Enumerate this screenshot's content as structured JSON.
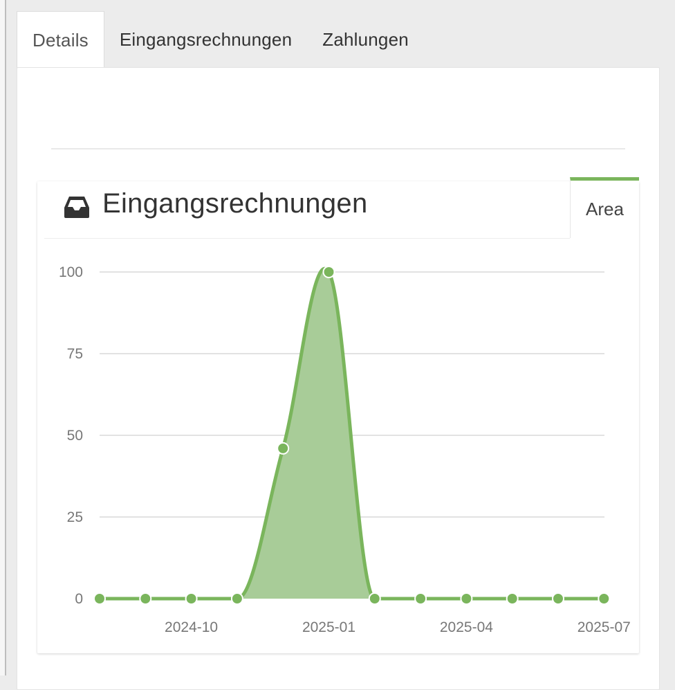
{
  "tabs": [
    {
      "label": "Details",
      "active": true
    },
    {
      "label": "Eingangsrechnungen",
      "active": false
    },
    {
      "label": "Zahlungen",
      "active": false
    }
  ],
  "card": {
    "title": "Eingangsrechnungen",
    "icon": "inbox-icon",
    "view_tab": "Area"
  },
  "colors": {
    "accent": "#7ab55c",
    "area_fill": "#a8cc98"
  },
  "chart_data": {
    "type": "area",
    "x": [
      "2024-08",
      "2024-09",
      "2024-10",
      "2024-11",
      "2024-12",
      "2025-01",
      "2025-02",
      "2025-03",
      "2025-04",
      "2025-05",
      "2025-06",
      "2025-07"
    ],
    "values": [
      0,
      0,
      0,
      0,
      46,
      100,
      0,
      0,
      0,
      0,
      0,
      0
    ],
    "x_tick_labels": [
      "2024-10",
      "2025-01",
      "2025-04",
      "2025-07"
    ],
    "y_tick_labels": [
      "0",
      "25",
      "50",
      "75",
      "100"
    ],
    "ylim": [
      0,
      100
    ],
    "grid": true,
    "title": "",
    "xlabel": "",
    "ylabel": ""
  }
}
